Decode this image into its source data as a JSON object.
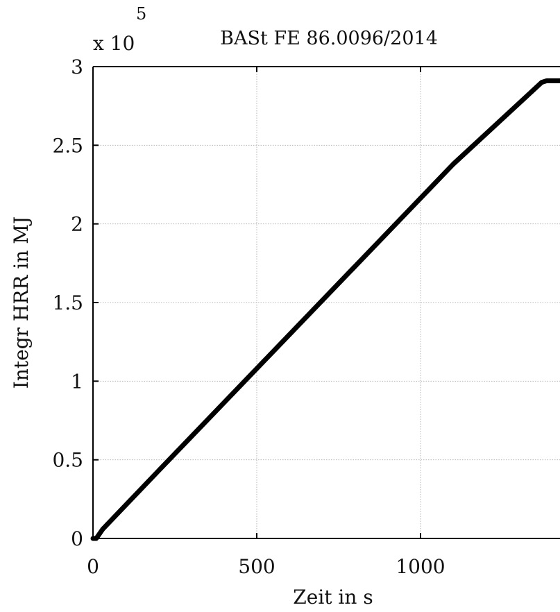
{
  "chart_data": {
    "type": "line",
    "title": "BASt FE 86.0096/2014",
    "xlabel": "Zeit in s",
    "ylabel": "Integr HRR in MJ",
    "y_multiplier_text": "x 10",
    "y_multiplier_exponent": "5",
    "xlim": [
      0,
      1440
    ],
    "ylim": [
      0,
      3
    ],
    "grid": true,
    "x_ticks": [
      {
        "value": 0,
        "label": "0"
      },
      {
        "value": 500,
        "label": "500"
      },
      {
        "value": 1000,
        "label": "1000"
      }
    ],
    "y_ticks": [
      {
        "value": 0,
        "label": "0"
      },
      {
        "value": 0.5,
        "label": "0.5"
      },
      {
        "value": 1,
        "label": "1"
      },
      {
        "value": 1.5,
        "label": "1.5"
      },
      {
        "value": 2,
        "label": "2"
      },
      {
        "value": 2.5,
        "label": "2.5"
      },
      {
        "value": 3,
        "label": "3"
      }
    ],
    "series": [
      {
        "color": "#000000",
        "x": [
          0,
          10,
          30,
          200,
          500,
          800,
          1100,
          1370,
          1385,
          1400,
          1440
        ],
        "y": [
          0,
          0.0,
          0.06,
          0.43,
          1.08,
          1.73,
          2.38,
          2.9,
          2.91,
          2.91,
          2.91
        ]
      }
    ]
  }
}
